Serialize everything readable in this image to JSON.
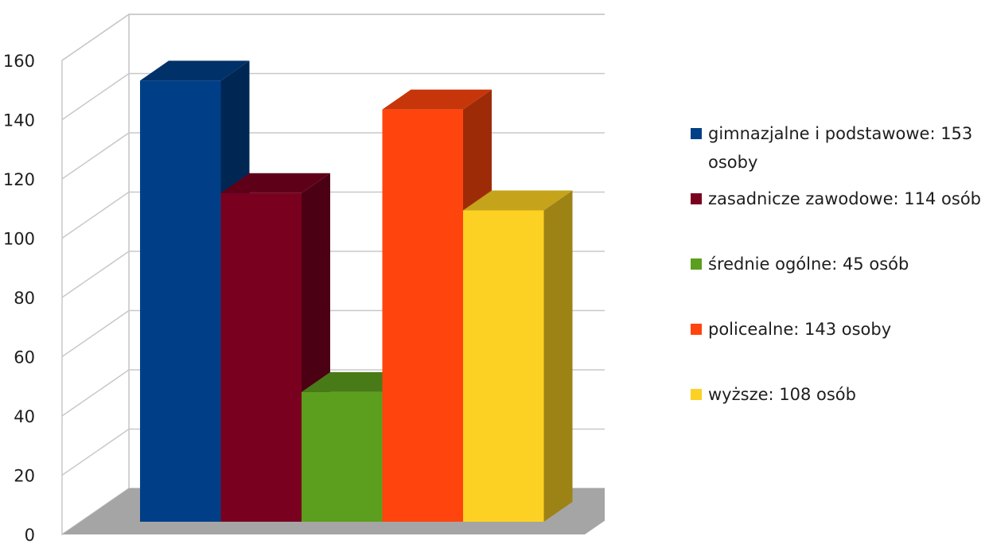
{
  "chart_data": {
    "type": "bar",
    "style": "3d",
    "categories": [
      "gimnazjalne i podstawowe: 153 osoby",
      "zasadnicze zawodowe: 114 osób",
      "średnie ogólne: 45 osób",
      "policealne: 143 osoby",
      "wyższe: 108 osób"
    ],
    "values": [
      153,
      114,
      45,
      143,
      108
    ],
    "colors": [
      "#003F87",
      "#7A0020",
      "#5C9E1E",
      "#FF450D",
      "#FDD123"
    ],
    "ylim": [
      0,
      160
    ],
    "yticks": [
      "0",
      "20",
      "40",
      "60",
      "80",
      "100",
      "120",
      "140",
      "160"
    ],
    "grid": true,
    "legend_position": "right",
    "title": "",
    "xlabel": "",
    "ylabel": ""
  },
  "legend": {
    "items": [
      {
        "label": "gimnazjalne i podstawowe: 153 osoby",
        "color": "#003F87"
      },
      {
        "label": "zasadnicze zawodowe: 114 osób",
        "color": "#7A0020"
      },
      {
        "label": "średnie ogólne: 45 osób",
        "color": "#5C9E1E"
      },
      {
        "label": "policealne: 143 osoby",
        "color": "#FF450D"
      },
      {
        "label": "wyższe: 108 osób",
        "color": "#FDD123"
      }
    ]
  }
}
